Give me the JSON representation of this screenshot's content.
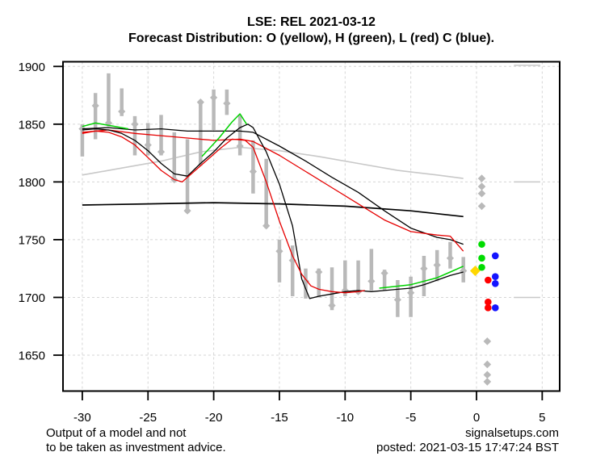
{
  "title": "LSE: REL 2021-03-12",
  "subtitle": "Forecast Distribution: O (yellow), H (green), L (red) C (blue).",
  "footer": {
    "disclaimer_line1": "Output of a model and not",
    "disclaimer_line2": "to be taken as investment advice.",
    "site": "signalsetups.com",
    "posted": "posted: 2021-03-15 17:47:24 BST"
  },
  "colors": {
    "open_yellow": "#ffd700",
    "high_green": "#00dc00",
    "low_red": "#ff0000",
    "close_blue": "#1414ff",
    "bar_gray": "#b9b9b9",
    "trend_gray": "#c8c8c8",
    "grid_gray": "#d6d6d6",
    "line_black": "#000000",
    "line_red": "#e60000"
  },
  "chart_data": {
    "type": "line",
    "title": "LSE: REL 2021-03-12",
    "subtitle": "Forecast Distribution: O (yellow), H (green), L (red) C (blue).",
    "xlabel": "",
    "ylabel": "",
    "x_ticks": [
      -30,
      -25,
      -20,
      -15,
      -10,
      -5,
      0,
      5
    ],
    "y_ticks": [
      1650,
      1700,
      1750,
      1800,
      1850,
      1900
    ],
    "xlim": [
      -31.6,
      6.3
    ],
    "ylim": [
      1619,
      1905
    ],
    "grid": true,
    "price_bars": [
      {
        "x": -30,
        "low": 1822,
        "high": 1850,
        "mid": 1846
      },
      {
        "x": -29,
        "low": 1837,
        "high": 1877,
        "mid": 1866
      },
      {
        "x": -28,
        "low": 1848,
        "high": 1894,
        "mid": 1851
      },
      {
        "x": -27,
        "low": 1857,
        "high": 1881,
        "mid": 1861
      },
      {
        "x": -26,
        "low": 1823,
        "high": 1857,
        "mid": 1850
      },
      {
        "x": -25,
        "low": 1823,
        "high": 1851,
        "mid": 1832
      },
      {
        "x": -24,
        "low": 1823,
        "high": 1858,
        "mid": 1826
      },
      {
        "x": -23,
        "low": 1800,
        "high": 1843,
        "mid": 1802
      },
      {
        "x": -22,
        "low": 1773,
        "high": 1837,
        "mid": 1775
      },
      {
        "x": -21,
        "low": 1814,
        "high": 1871,
        "mid": 1869
      },
      {
        "x": -20,
        "low": 1845,
        "high": 1880,
        "mid": 1873
      },
      {
        "x": -19,
        "low": 1858,
        "high": 1880,
        "mid": 1868
      },
      {
        "x": -18,
        "low": 1823,
        "high": 1858,
        "mid": 1831
      },
      {
        "x": -17,
        "low": 1790,
        "high": 1836,
        "mid": 1809
      },
      {
        "x": -16,
        "low": 1760,
        "high": 1820,
        "mid": 1762
      },
      {
        "x": -15,
        "low": 1713,
        "high": 1750,
        "mid": 1740
      },
      {
        "x": -14,
        "low": 1701,
        "high": 1745,
        "mid": 1732
      },
      {
        "x": -13,
        "low": 1699,
        "high": 1725,
        "mid": 1714
      },
      {
        "x": -12,
        "low": 1700,
        "high": 1725,
        "mid": 1722
      },
      {
        "x": -11,
        "low": 1689,
        "high": 1726,
        "mid": 1693
      },
      {
        "x": -10,
        "low": 1701,
        "high": 1732,
        "mid": 1706
      },
      {
        "x": -9,
        "low": 1703,
        "high": 1732,
        "mid": 1705
      },
      {
        "x": -8,
        "low": 1706,
        "high": 1742,
        "mid": 1714
      },
      {
        "x": -7,
        "low": 1706,
        "high": 1724,
        "mid": 1721
      },
      {
        "x": -6,
        "low": 1683,
        "high": 1715,
        "mid": 1698
      },
      {
        "x": -5,
        "low": 1683,
        "high": 1718,
        "mid": 1704
      },
      {
        "x": -4,
        "low": 1701,
        "high": 1736,
        "mid": 1725
      },
      {
        "x": -3,
        "low": 1714,
        "high": 1741,
        "mid": 1728
      },
      {
        "x": -2,
        "low": 1725,
        "high": 1748,
        "mid": 1734
      },
      {
        "x": -1,
        "low": 1713,
        "high": 1735,
        "mid": 1723
      }
    ],
    "lines": [
      {
        "name": "trend-smooth",
        "color": "#c8c8c8",
        "width": 1.6,
        "behind_bars": true,
        "points": [
          [
            -30,
            1806
          ],
          [
            -27,
            1812
          ],
          [
            -24,
            1818
          ],
          [
            -21,
            1826
          ],
          [
            -18,
            1830
          ],
          [
            -15,
            1827
          ],
          [
            -12,
            1822
          ],
          [
            -9,
            1816
          ],
          [
            -6,
            1810
          ],
          [
            -3,
            1806
          ],
          [
            -1,
            1803
          ]
        ]
      },
      {
        "name": "baseline-flat-black",
        "color": "#000000",
        "width": 1.7,
        "behind_bars": false,
        "points": [
          [
            -30,
            1780
          ],
          [
            -25,
            1781
          ],
          [
            -20,
            1782
          ],
          [
            -15,
            1781
          ],
          [
            -10,
            1779
          ],
          [
            -5,
            1775
          ],
          [
            -1,
            1770
          ]
        ]
      },
      {
        "name": "model-a-black",
        "color": "#000000",
        "width": 1.3,
        "behind_bars": false,
        "points": [
          [
            -30,
            1846
          ],
          [
            -28,
            1847
          ],
          [
            -26,
            1845
          ],
          [
            -24,
            1846
          ],
          [
            -22,
            1844
          ],
          [
            -20,
            1844
          ],
          [
            -18,
            1844
          ],
          [
            -17,
            1843
          ],
          [
            -15,
            1831
          ],
          [
            -13,
            1818
          ],
          [
            -11,
            1804
          ],
          [
            -9,
            1791
          ],
          [
            -7,
            1775
          ],
          [
            -5,
            1760
          ],
          [
            -3,
            1752
          ],
          [
            -2,
            1750
          ],
          [
            -1,
            1746
          ]
        ]
      },
      {
        "name": "model-a-red",
        "color": "#e60000",
        "width": 1.3,
        "behind_bars": false,
        "points": [
          [
            -30,
            1843
          ],
          [
            -28,
            1845
          ],
          [
            -26,
            1842
          ],
          [
            -24,
            1840
          ],
          [
            -22,
            1838
          ],
          [
            -20,
            1836
          ],
          [
            -18,
            1837
          ],
          [
            -17,
            1835
          ],
          [
            -15,
            1823
          ],
          [
            -13,
            1809
          ],
          [
            -11,
            1795
          ],
          [
            -9,
            1781
          ],
          [
            -7,
            1767
          ],
          [
            -5,
            1757
          ],
          [
            -3,
            1754
          ],
          [
            -2,
            1753
          ],
          [
            -1,
            1740
          ]
        ]
      },
      {
        "name": "model-b-black",
        "color": "#000000",
        "width": 1.3,
        "behind_bars": false,
        "points": [
          [
            -30,
            1845
          ],
          [
            -29,
            1846
          ],
          [
            -28,
            1845
          ],
          [
            -27,
            1842
          ],
          [
            -26,
            1836
          ],
          [
            -25,
            1827
          ],
          [
            -24,
            1816
          ],
          [
            -23,
            1807
          ],
          [
            -22,
            1805
          ],
          [
            -21,
            1816
          ],
          [
            -20,
            1826
          ],
          [
            -19,
            1838
          ],
          [
            -18,
            1847
          ],
          [
            -17.4,
            1850
          ],
          [
            -17,
            1847
          ],
          [
            -16,
            1826
          ],
          [
            -15,
            1798
          ],
          [
            -14,
            1762
          ],
          [
            -13.3,
            1716
          ],
          [
            -12.7,
            1699
          ],
          [
            -12,
            1701
          ],
          [
            -11,
            1703
          ],
          [
            -10,
            1705
          ],
          [
            -9,
            1706
          ],
          [
            -8,
            1705
          ],
          [
            -7,
            1706
          ],
          [
            -6,
            1707
          ],
          [
            -5,
            1708
          ],
          [
            -4,
            1711
          ],
          [
            -3,
            1715
          ],
          [
            -2,
            1719
          ],
          [
            -1,
            1722
          ]
        ]
      },
      {
        "name": "model-b-red",
        "color": "#e60000",
        "width": 1.3,
        "behind_bars": false,
        "points": [
          [
            -30,
            1842
          ],
          [
            -29,
            1844
          ],
          [
            -28,
            1843
          ],
          [
            -27,
            1839
          ],
          [
            -26,
            1832
          ],
          [
            -25,
            1821
          ],
          [
            -24,
            1810
          ],
          [
            -23,
            1802
          ],
          [
            -22.4,
            1800
          ],
          [
            -21.5,
            1809
          ],
          [
            -20.5,
            1819
          ],
          [
            -19.5,
            1829
          ],
          [
            -18.6,
            1837
          ],
          [
            -17.6,
            1836
          ],
          [
            -17,
            1830
          ],
          [
            -16,
            1800
          ],
          [
            -15,
            1766
          ],
          [
            -14,
            1736
          ],
          [
            -13.3,
            1720
          ],
          [
            -12.6,
            1710
          ],
          [
            -12,
            1707
          ],
          [
            -11,
            1705
          ],
          [
            -10,
            1704
          ],
          [
            -9,
            1705
          ],
          [
            -8.5,
            1706
          ]
        ]
      },
      {
        "name": "high-green-seg1",
        "color": "#00d200",
        "width": 1.5,
        "behind_bars": false,
        "points": [
          [
            -30,
            1848
          ],
          [
            -29,
            1851
          ],
          [
            -28,
            1849
          ],
          [
            -26.5,
            1846
          ]
        ]
      },
      {
        "name": "high-green-seg2",
        "color": "#00d200",
        "width": 1.5,
        "behind_bars": false,
        "points": [
          [
            -20.9,
            1822
          ],
          [
            -19.6,
            1838
          ],
          [
            -18.6,
            1852
          ],
          [
            -18,
            1859
          ],
          [
            -17.5,
            1850
          ]
        ]
      },
      {
        "name": "high-green-seg3",
        "color": "#00d200",
        "width": 1.5,
        "behind_bars": false,
        "points": [
          [
            -7.4,
            1708
          ],
          [
            -5,
            1711
          ],
          [
            -3,
            1717
          ],
          [
            -2,
            1722
          ],
          [
            -1,
            1727
          ]
        ]
      }
    ],
    "level_marks": {
      "color": "#c8c8c8",
      "width": 1.5,
      "x_range": [
        2.85,
        4.85
      ],
      "values": [
        1901,
        1800,
        1700
      ]
    },
    "forecast_points": [
      {
        "name": "open-forecast-yellow",
        "color": "#ffd700",
        "shape": "diamond",
        "x": -0.1,
        "size": 5.2,
        "values": [
          1723
        ]
      },
      {
        "name": "high-forecast-green",
        "color": "#00dc00",
        "shape": "circle",
        "x": 0.4,
        "size": 4.3,
        "values": [
          1746,
          1734,
          1726
        ]
      },
      {
        "name": "high-outliers-gray",
        "color": "#b9b9b9",
        "shape": "diamond",
        "x": 0.4,
        "size": 3.6,
        "values": [
          1803,
          1796,
          1790,
          1779
        ]
      },
      {
        "name": "low-forecast-red",
        "color": "#ff0000",
        "shape": "circle",
        "x": 0.88,
        "size": 4.3,
        "values": [
          1715,
          1696,
          1691
        ]
      },
      {
        "name": "low-outliers-gray",
        "color": "#b9b9b9",
        "shape": "diamond",
        "x": 0.82,
        "size": 3.6,
        "values": [
          1662,
          1642,
          1633,
          1627
        ]
      },
      {
        "name": "close-forecast-blue",
        "color": "#1414ff",
        "shape": "circle",
        "x": 1.43,
        "size": 4.3,
        "values": [
          1736,
          1718,
          1712,
          1691
        ]
      }
    ]
  }
}
